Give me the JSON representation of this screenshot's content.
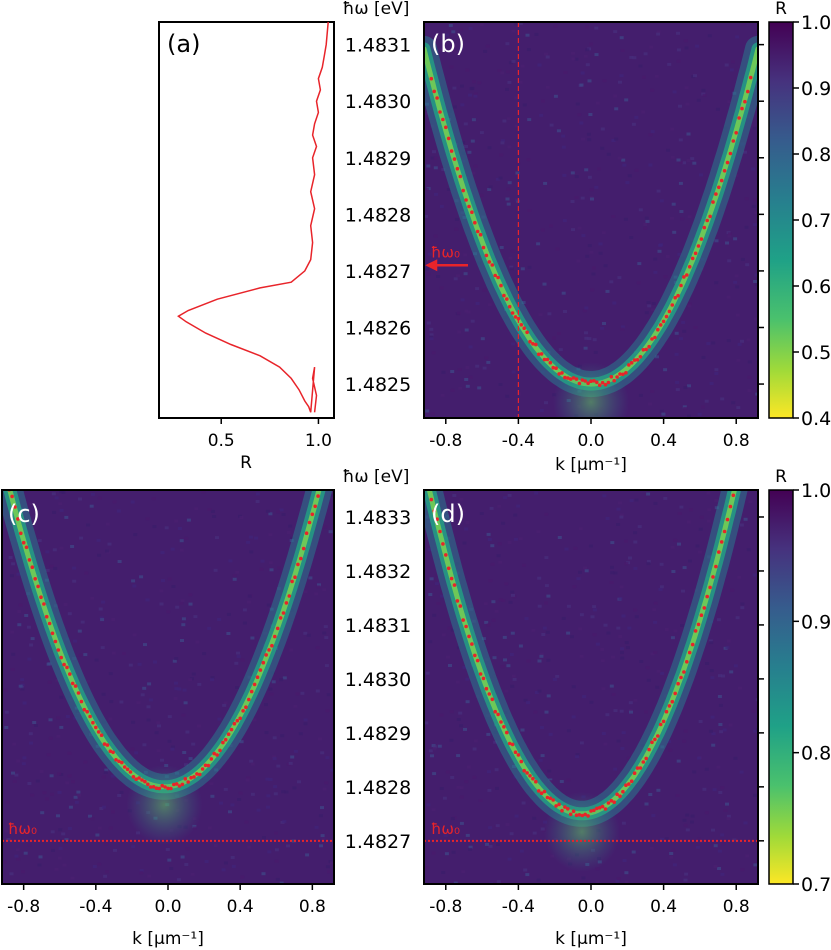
{
  "colors": {
    "marker": "#e8242a",
    "curve": "#e8242a",
    "axis": "#000000"
  },
  "chart_data": [
    {
      "panel": "a",
      "type": "line",
      "label": "(a)",
      "xlabel": "R",
      "ylabel": "ħω [eV]",
      "xlim": [
        0.18,
        1.08
      ],
      "ylim": [
        1.48244,
        1.48314
      ],
      "xticks": [
        "0.5",
        "1.0"
      ],
      "yticks": [
        "1.4825",
        "1.4826",
        "1.4827",
        "1.4828",
        "1.4829",
        "1.4830",
        "1.4831"
      ],
      "series": [
        {
          "x": [
            0.98,
            0.99,
            0.97,
            0.98,
            0.96,
            0.95,
            0.93,
            0.9,
            0.86,
            0.8,
            0.7,
            0.55,
            0.42,
            0.32,
            0.28,
            0.33,
            0.48,
            0.7,
            0.86,
            0.93,
            0.96,
            0.97,
            0.96,
            0.98,
            0.96,
            0.98,
            0.97,
            0.99,
            0.97,
            0.98,
            1.0,
            0.99,
            1.01,
            1.0,
            1.02,
            1.03,
            1.04,
            1.05
          ],
          "y": [
            1.48245,
            1.48248,
            1.48251,
            1.48253,
            1.48245,
            1.48246,
            1.48247,
            1.48249,
            1.48251,
            1.48253,
            1.48255,
            1.48257,
            1.48259,
            1.48261,
            1.48262,
            1.48263,
            1.48265,
            1.48267,
            1.48268,
            1.4827,
            1.48272,
            1.48275,
            1.48278,
            1.48281,
            1.48284,
            1.48287,
            1.4829,
            1.48292,
            1.48294,
            1.48296,
            1.48298,
            1.483,
            1.48302,
            1.48304,
            1.48306,
            1.48308,
            1.4831,
            1.48314
          ]
        }
      ]
    },
    {
      "panel": "b",
      "type": "heatmap",
      "label": "(b)",
      "xlabel": "k [µm⁻¹]",
      "xlim": [
        -0.92,
        0.92
      ],
      "ylim": [
        1.48244,
        1.48314
      ],
      "xticks": [
        "-0.8",
        "-0.4",
        "0.0",
        "0.4",
        "0.8"
      ],
      "dispersion": {
        "e0": 1.4825,
        "k0": 0.0,
        "c": 0.0007
      },
      "vline": -0.4,
      "annotation": "ħω₀",
      "annotation_energy": 1.48271
    },
    {
      "panel": "c",
      "type": "heatmap",
      "label": "(c)",
      "xlabel": "k [µm⁻¹]",
      "ylabel": "ħω [eV]",
      "xlim": [
        -0.92,
        0.92
      ],
      "ylim": [
        1.48262,
        1.48335
      ],
      "xticks": [
        "-0.8",
        "-0.4",
        "0.0",
        "0.4",
        "0.8"
      ],
      "yticks": [
        "1.4827",
        "1.4828",
        "1.4829",
        "1.4830",
        "1.4831",
        "1.4832",
        "1.4833"
      ],
      "dispersion": {
        "e0": 1.4828,
        "k0": -0.02,
        "c": 0.00075
      },
      "hline": 1.4827,
      "annotation": "ħω₀"
    },
    {
      "panel": "d",
      "type": "heatmap",
      "label": "(d)",
      "xlabel": "k [µm⁻¹]",
      "xlim": [
        -0.92,
        0.92
      ],
      "ylim": [
        1.48262,
        1.48335
      ],
      "xticks": [
        "-0.8",
        "-0.4",
        "0.0",
        "0.4",
        "0.8"
      ],
      "dispersion": {
        "e0": 1.48275,
        "k0": -0.05,
        "c": 0.00085
      },
      "hline": 1.4827,
      "annotation": "ħω₀"
    }
  ],
  "colorbar_top": {
    "label": "R",
    "range": [
      0.4,
      1.0
    ],
    "ticks": [
      "1.0",
      "0.9",
      "0.8",
      "0.7",
      "0.6",
      "0.5",
      "0.4"
    ]
  },
  "colorbar_bottom": {
    "label": "R",
    "range": [
      0.7,
      1.0
    ],
    "ticks": [
      "1.0",
      "0.9",
      "0.8",
      "0.7"
    ]
  }
}
